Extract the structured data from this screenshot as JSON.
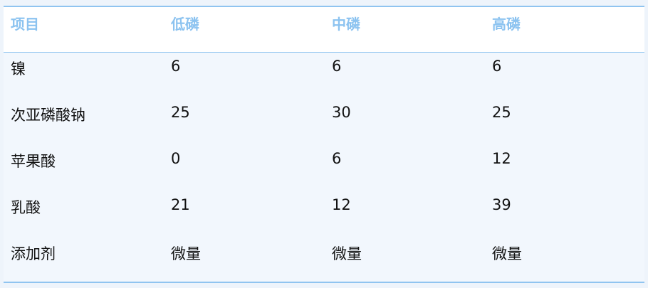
{
  "table": {
    "headers": [
      "项目",
      "低磷",
      "中磷",
      "高磷"
    ],
    "rows": [
      [
        "镍",
        "6",
        "6",
        "6"
      ],
      [
        "次亚磷酸钠",
        "25",
        "30",
        "25"
      ],
      [
        "苹果酸",
        "0",
        "6",
        "12"
      ],
      [
        "乳酸",
        "21",
        "12",
        "39"
      ],
      [
        "添加剂",
        "微量",
        "微量",
        "微量"
      ]
    ]
  },
  "colors": {
    "header_text": "#8cc3f0",
    "border": "#90c4f0",
    "body_bg": "#f2f7fd"
  }
}
